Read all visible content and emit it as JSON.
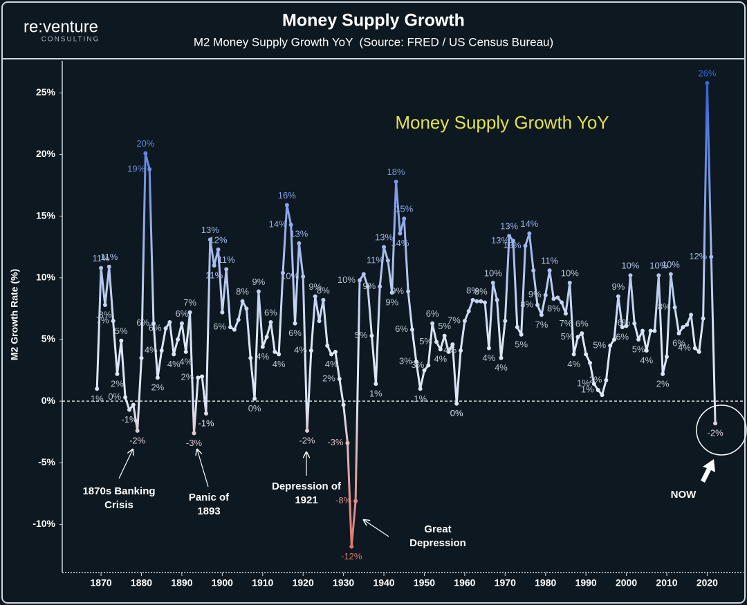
{
  "logo": {
    "name": "re:venture",
    "tagline": "CONSULTING"
  },
  "chart_data": {
    "type": "line",
    "title": "Money Supply Growth",
    "subtitle": "M2 Money Supply Growth YoY  (Source: FRED / US Census Bureau)",
    "ylabel": "M2 Growth Rate (%)",
    "x": [
      1869,
      1870,
      1871,
      1872,
      1873,
      1874,
      1875,
      1876,
      1877,
      1878,
      1879,
      1880,
      1881,
      1882,
      1883,
      1884,
      1885,
      1886,
      1887,
      1888,
      1889,
      1890,
      1891,
      1892,
      1893,
      1894,
      1895,
      1896,
      1897,
      1898,
      1899,
      1900,
      1901,
      1902,
      1903,
      1904,
      1905,
      1906,
      1907,
      1908,
      1909,
      1910,
      1911,
      1912,
      1913,
      1914,
      1915,
      1916,
      1917,
      1918,
      1919,
      1920,
      1921,
      1922,
      1923,
      1924,
      1925,
      1926,
      1927,
      1928,
      1929,
      1930,
      1931,
      1932,
      1933,
      1934,
      1935,
      1936,
      1937,
      1938,
      1939,
      1940,
      1941,
      1942,
      1943,
      1944,
      1945,
      1946,
      1947,
      1948,
      1949,
      1950,
      1951,
      1952,
      1953,
      1954,
      1955,
      1956,
      1957,
      1958,
      1959,
      1960,
      1961,
      1962,
      1963,
      1964,
      1965,
      1966,
      1967,
      1968,
      1969,
      1970,
      1971,
      1972,
      1973,
      1974,
      1975,
      1976,
      1977,
      1978,
      1979,
      1980,
      1981,
      1982,
      1983,
      1984,
      1985,
      1986,
      1987,
      1988,
      1989,
      1990,
      1991,
      1992,
      1993,
      1994,
      1995,
      1996,
      1997,
      1998,
      1999,
      2000,
      2001,
      2002,
      2003,
      2004,
      2005,
      2006,
      2007,
      2008,
      2009,
      2010,
      2011,
      2012,
      2013,
      2014,
      2015,
      2016,
      2017,
      2018,
      2019,
      2020,
      2021,
      2022
    ],
    "series": [
      {
        "name": "Money Supply Growth YoY",
        "color": "#dde6f5",
        "gradient": {
          "high": "#3a66dc",
          "low": "#e0766c"
        },
        "values": [
          1.0,
          10.8,
          7.8,
          10.9,
          6.5,
          2.2,
          4.9,
          0.3,
          -0.7,
          -0.3,
          -2.4,
          3.5,
          20.1,
          18.8,
          6.3,
          1.9,
          4.1,
          5.9,
          6.4,
          3.8,
          5.0,
          6.3,
          4.0,
          7.2,
          -2.6,
          1.9,
          2.0,
          -1.0,
          13.1,
          11.0,
          12.3,
          7.2,
          10.7,
          6.0,
          5.8,
          6.6,
          8.1,
          7.5,
          3.5,
          0.2,
          8.9,
          4.4,
          5.2,
          6.4,
          4.0,
          3.8,
          10.4,
          15.9,
          14.3,
          6.3,
          12.8,
          10.1,
          -2.4,
          4.1,
          8.5,
          6.5,
          8.2,
          4.5,
          3.8,
          4.0,
          1.8,
          -0.3,
          -3.4,
          -11.8,
          -8.1,
          9.8,
          10.3,
          9.3,
          5.3,
          1.4,
          9.3,
          12.5,
          11.4,
          8.8,
          17.8,
          13.6,
          14.8,
          8.9,
          5.8,
          3.2,
          1.0,
          2.5,
          2.9,
          6.3,
          4.8,
          4.2,
          5.3,
          4.0,
          4.6,
          -0.2,
          4.1,
          6.5,
          7.3,
          8.2,
          8.1,
          8.1,
          8.0,
          4.3,
          9.6,
          8.2,
          3.5,
          6.5,
          13.4,
          13.0,
          6.0,
          5.4,
          12.6,
          13.6,
          10.6,
          7.8,
          7.0,
          8.6,
          10.6,
          8.3,
          8.4,
          8.0,
          7.1,
          9.6,
          3.8,
          5.2,
          5.5,
          3.8,
          3.1,
          1.4,
          0.9,
          0.5,
          1.7,
          4.5,
          5.0,
          8.5,
          6.0,
          6.1,
          10.2,
          6.3,
          5.0,
          5.7,
          4.1,
          5.7,
          5.7,
          10.2,
          2.2,
          3.6,
          10.3,
          7.6,
          5.5,
          6.0,
          6.2,
          7.0,
          4.3,
          4.0,
          6.7,
          25.8,
          11.7,
          -1.8
        ],
        "value_labels": [
          "1%",
          "11%",
          "8%",
          "11%",
          "7%",
          "2%",
          "5%",
          "0%",
          "-1%",
          null,
          "-2%",
          null,
          "20%",
          "19%",
          "6%",
          "2%",
          "4%",
          "6%",
          null,
          "4%",
          null,
          "6%",
          "4%",
          "7%",
          "-3%",
          "2%",
          null,
          "-1%",
          "13%",
          "11%",
          "12%",
          null,
          "11%",
          "6%",
          null,
          null,
          "8%",
          null,
          null,
          "0%",
          "9%",
          "4%",
          null,
          "6%",
          null,
          "4%",
          null,
          "16%",
          "14%",
          "6%",
          "13%",
          "10%",
          "-2%",
          "4%",
          "9%",
          null,
          "8%",
          null,
          "4%",
          null,
          "2%",
          null,
          "-3%",
          "-12%",
          "-8%",
          "10%",
          null,
          null,
          "5%",
          "1%",
          "9%",
          "13%",
          "11%",
          "9%",
          "18%",
          "14%",
          "15%",
          "9%",
          "6%",
          "3%",
          "1%",
          null,
          "3%",
          "6%",
          "5%",
          "4%",
          "5%",
          null,
          null,
          "0%",
          "4%",
          "7%",
          null,
          "8%",
          null,
          "8%",
          null,
          "4%",
          "10%",
          null,
          "4%",
          null,
          "13%",
          "13%",
          null,
          "5%",
          "13%",
          "14%",
          null,
          "8%",
          "7%",
          "9%",
          "11%",
          "8%",
          null,
          null,
          "7%",
          "10%",
          "4%",
          "5%",
          "6%",
          null,
          null,
          "1%",
          "1%",
          null,
          "2%",
          "5%",
          null,
          "9%",
          "6%",
          null,
          "10%",
          "6%",
          "5%",
          null,
          "4%",
          null,
          null,
          "10%",
          "2%",
          null,
          "10%",
          "8%",
          "6%",
          null,
          null,
          null,
          "4%",
          null,
          null,
          "26%",
          "12%",
          "-2%"
        ]
      }
    ],
    "legend_color": "#e4e14c",
    "xlim": [
      1860.4,
      2029
    ],
    "ylim": [
      -13.9,
      27.6
    ],
    "xticks": [
      1870,
      1880,
      1890,
      1900,
      1910,
      1920,
      1930,
      1940,
      1950,
      1960,
      1970,
      1980,
      1990,
      2000,
      2010,
      2020
    ],
    "yticks": [
      {
        "value": -10,
        "label": "-10%"
      },
      {
        "value": -5,
        "label": "-5%"
      },
      {
        "value": 0,
        "label": "0%"
      },
      {
        "value": 5,
        "label": "5%"
      },
      {
        "value": 10,
        "label": "10%"
      },
      {
        "value": 15,
        "label": "15%"
      },
      {
        "value": 20,
        "label": "20%"
      },
      {
        "value": 25,
        "label": "25%"
      }
    ],
    "zero_line": true,
    "annotations": [
      {
        "lines": [
          "1870s Banking",
          "Crisis"
        ]
      },
      {
        "lines": [
          "Panic of",
          "1893"
        ]
      },
      {
        "lines": [
          "Depression of",
          "1921"
        ]
      },
      {
        "lines": [
          "Great",
          "Depression"
        ]
      },
      {
        "lines": [
          "NOW"
        ]
      }
    ]
  }
}
